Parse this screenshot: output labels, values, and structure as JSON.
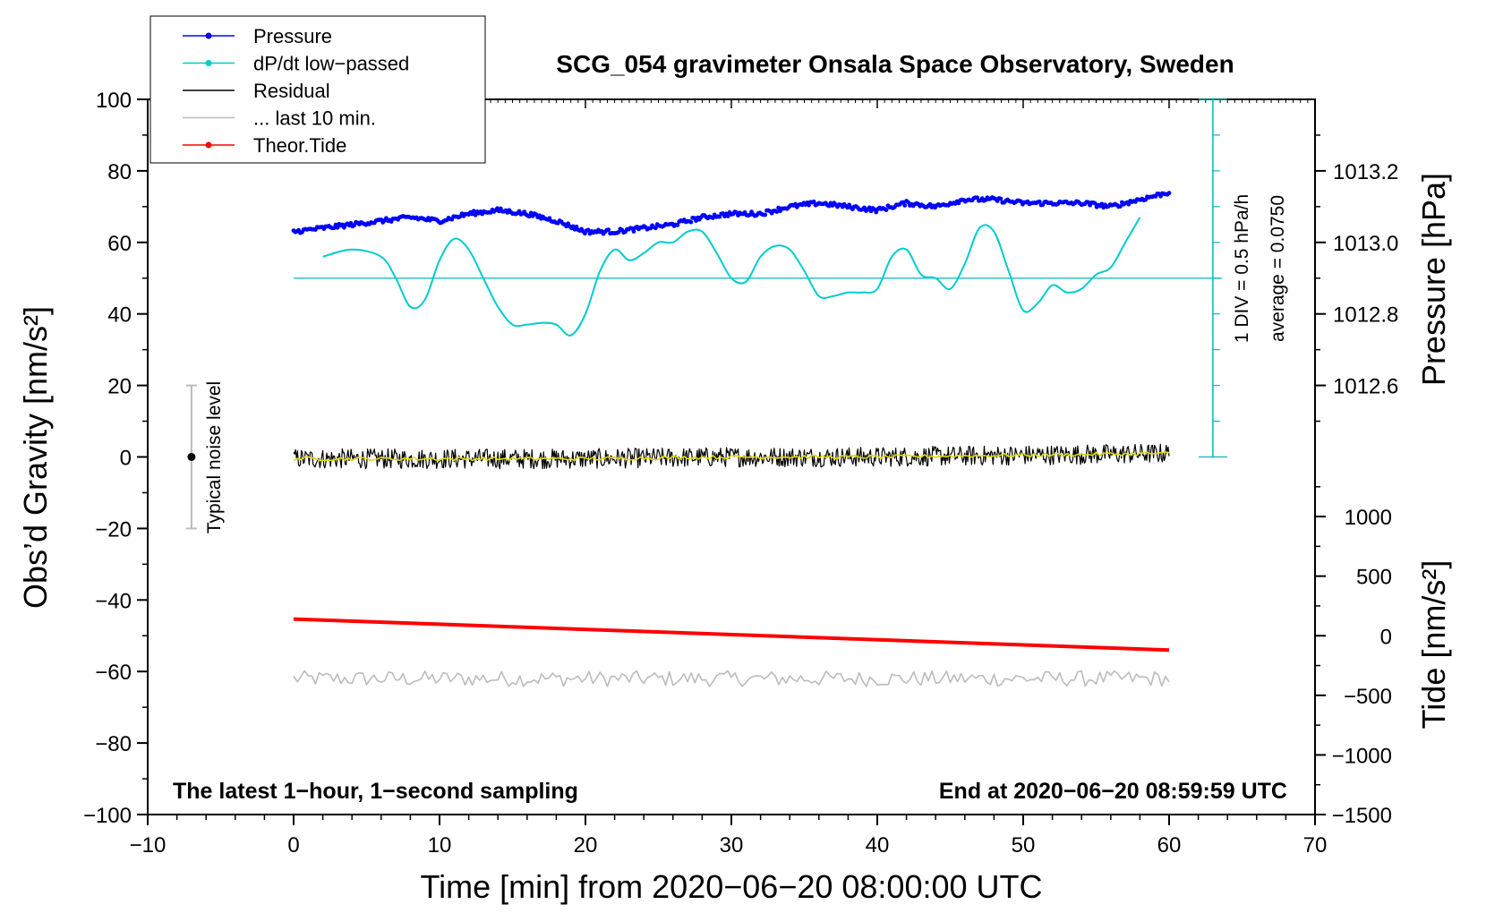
{
  "chart_data": {
    "type": "line",
    "title": "SCG_054 gravimeter Onsala Space Observatory, Sweden",
    "xlabel": "Time [min] from 2020−06−20 08:00:00 UTC",
    "ylabel_left": "Obs’d Gravity [nm/s²]",
    "ylabel_right_top": "Pressure [hPa]",
    "ylabel_right_bottom": "Tide [nm/s²]",
    "xlim": [
      -10,
      70
    ],
    "ylim": [
      -100,
      100
    ],
    "pressure_lim": [
      1012.4,
      1013.4
    ],
    "tide_lim": [
      -1500,
      1500
    ],
    "x_ticks": [
      -10,
      0,
      10,
      20,
      30,
      40,
      50,
      60,
      70
    ],
    "x_tick_labels": [
      "−10",
      "0",
      "10",
      "20",
      "30",
      "40",
      "50",
      "60",
      "70"
    ],
    "y_ticks": [
      -100,
      -80,
      -60,
      -40,
      -20,
      0,
      20,
      40,
      60,
      80,
      100
    ],
    "y_tick_labels": [
      "−100",
      "−80",
      "−60",
      "−40",
      "−20",
      "0",
      "20",
      "40",
      "60",
      "80",
      "100"
    ],
    "pressure_ticks": [
      1012.6,
      1012.8,
      1013.0,
      1013.2
    ],
    "pressure_tick_labels": [
      "1012.6",
      "1012.8",
      "1013.0",
      "1013.2"
    ],
    "tide_ticks": [
      -1500,
      -1000,
      -500,
      0,
      500,
      1000
    ],
    "tide_tick_labels": [
      "−1500",
      "−1000",
      "−500",
      "0",
      "500",
      "1000"
    ],
    "legend": {
      "position": "top-left",
      "entries": [
        {
          "label": "Pressure",
          "color": "#0000ff",
          "marker": true
        },
        {
          "label": "dP/dt low−passed",
          "color": "#00cccc",
          "marker": true
        },
        {
          "label": "Residual",
          "color": "#000000",
          "marker": false
        },
        {
          "label": "... last 10 min.",
          "color": "#bbbbbb",
          "marker": false
        },
        {
          "label": "Theor.Tide",
          "color": "#ff0000",
          "marker": true
        }
      ]
    },
    "annotations": {
      "bottom_left": "The latest 1−hour, 1−second sampling",
      "bottom_right": "End at 2020−06−20 08:59:59 UTC",
      "noise": "Typical noise level",
      "div_scale": "1 DIV = 0.5 hPa/h",
      "dpdt_average": "average = 0.0750"
    },
    "noise_bar": {
      "x": -7,
      "low": -20,
      "high": 20
    },
    "dpdt_baseline_gravity": 50,
    "dpdt_scale_axis": {
      "x": 63,
      "from": 0,
      "to": 100,
      "divisions": 10
    },
    "series": [
      {
        "name": "Pressure",
        "color": "#0000ff",
        "axis": "pressure",
        "x": [
          0,
          2,
          4,
          6,
          8,
          10,
          12,
          14,
          16,
          18,
          20,
          22,
          24,
          26,
          28,
          30,
          32,
          34,
          36,
          38,
          40,
          42,
          44,
          46,
          48,
          50,
          52,
          54,
          56,
          58,
          60
        ],
        "values": [
          1013.03,
          1013.04,
          1013.05,
          1013.06,
          1013.07,
          1013.06,
          1013.08,
          1013.09,
          1013.08,
          1013.06,
          1013.03,
          1013.03,
          1013.04,
          1013.05,
          1013.07,
          1013.08,
          1013.08,
          1013.1,
          1013.11,
          1013.1,
          1013.09,
          1013.11,
          1013.1,
          1013.12,
          1013.12,
          1013.11,
          1013.11,
          1013.11,
          1013.1,
          1013.12,
          1013.14
        ]
      },
      {
        "name": "dP/dt low−passed",
        "color": "#00cccc",
        "axis": "gravity",
        "x": [
          2,
          4,
          6,
          7,
          8,
          9,
          10,
          11,
          12,
          13,
          14,
          15,
          16,
          17,
          18,
          19,
          20,
          21,
          22,
          23,
          24,
          25,
          26,
          27,
          28,
          29,
          30,
          31,
          32,
          33,
          34,
          35,
          36,
          37,
          38,
          39,
          40,
          41,
          42,
          43,
          44,
          45,
          46,
          47,
          48,
          49,
          50,
          51,
          52,
          53,
          54,
          55,
          56,
          57,
          58
        ],
        "values": [
          56,
          58,
          56,
          50,
          42,
          44,
          55,
          61,
          58,
          50,
          42,
          37,
          37,
          37.5,
          37,
          34,
          40,
          52,
          58,
          55,
          57,
          60,
          60,
          63,
          63,
          57,
          50,
          49,
          56,
          59,
          58,
          52,
          45,
          45,
          46,
          46,
          47,
          56,
          58,
          51,
          50,
          47,
          54,
          64,
          63,
          52,
          41,
          43,
          48,
          46,
          47,
          51,
          53,
          60,
          67
        ]
      },
      {
        "name": "Residual",
        "color": "#000000",
        "axis": "gravity",
        "x": [
          0,
          10,
          20,
          30,
          40,
          50,
          60
        ],
        "values": [
          -0.5,
          -0.5,
          -0.5,
          0,
          0,
          0.5,
          1
        ]
      },
      {
        "name": "Residual smoothed",
        "color": "#dddd00",
        "axis": "gravity",
        "x": [
          0,
          10,
          20,
          30,
          40,
          50,
          60
        ],
        "values": [
          -0.5,
          -0.5,
          -0.5,
          0,
          0,
          0.5,
          1
        ]
      },
      {
        "name": "... last 10 min.",
        "color": "#bbbbbb",
        "axis": "gravity",
        "x": [
          0,
          60
        ],
        "values": [
          -62,
          -62
        ]
      },
      {
        "name": "Theor.Tide",
        "color": "#ff0000",
        "axis": "tide",
        "x": [
          0,
          60
        ],
        "values": [
          140,
          -120
        ]
      }
    ]
  }
}
